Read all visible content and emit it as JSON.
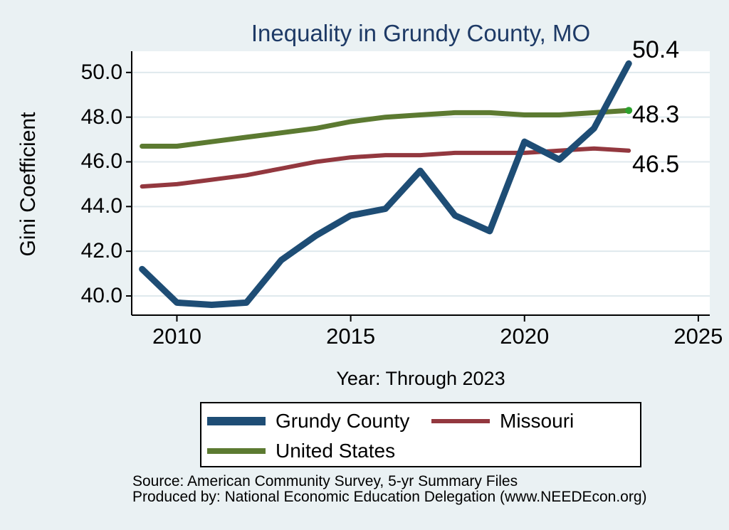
{
  "title": "Inequality in Grundy County, MO",
  "source": {
    "line1": "Source: American Community Survey, 5-yr Summary Files",
    "line2": "Produced by: National Economic Education Delegation (www.NEEDEcon.org)"
  },
  "colors": {
    "background": "#eaf1f3",
    "plot_background": "#ffffff",
    "gridline": "#dfe9ed",
    "axis": "#000000",
    "title_text": "#1e3a66",
    "label_text": "#000000",
    "legend_border": "#000000",
    "end_dot": "#2da12d"
  },
  "chart_data": {
    "type": "line",
    "title": "Inequality in Grundy County, MO",
    "xlabel": "Year: Through 2023",
    "ylabel": "Gini Coefficient",
    "x": [
      2009,
      2010,
      2011,
      2012,
      2013,
      2014,
      2015,
      2016,
      2017,
      2018,
      2019,
      2020,
      2021,
      2022,
      2023
    ],
    "series": [
      {
        "name": "Grundy County",
        "color": "#1e4d75",
        "line_width": 9,
        "end_label": "50.4",
        "end_dot": false,
        "values": [
          41.2,
          39.7,
          39.6,
          39.7,
          41.6,
          42.7,
          43.6,
          43.9,
          45.6,
          43.6,
          42.9,
          46.9,
          46.1,
          47.5,
          50.4
        ]
      },
      {
        "name": "Missouri",
        "color": "#93383f",
        "line_width": 6,
        "end_label": "46.5",
        "end_dot": false,
        "values": [
          44.9,
          45.0,
          45.2,
          45.4,
          45.7,
          46.0,
          46.2,
          46.3,
          46.3,
          46.4,
          46.4,
          46.4,
          46.5,
          46.6,
          46.5
        ]
      },
      {
        "name": "United States",
        "color": "#5c7a31",
        "line_width": 7,
        "end_label": "48.3",
        "end_dot": true,
        "values": [
          46.7,
          46.7,
          46.9,
          47.1,
          47.3,
          47.5,
          47.8,
          48.0,
          48.1,
          48.2,
          48.2,
          48.1,
          48.1,
          48.2,
          48.3
        ]
      }
    ],
    "x_ticks": [
      2010,
      2015,
      2020,
      2025
    ],
    "x_tick_labels": [
      "2010",
      "2015",
      "2020",
      "2025"
    ],
    "y_ticks": [
      40,
      42,
      44,
      46,
      48,
      50
    ],
    "y_tick_labels": [
      "40.0",
      "42.0",
      "44.0",
      "46.0",
      "48.0",
      "50.0"
    ],
    "xlim": [
      2008.7,
      2025.33
    ],
    "ylim": [
      39.14,
      50.95
    ],
    "grid": true,
    "legend_position": "bottom"
  }
}
